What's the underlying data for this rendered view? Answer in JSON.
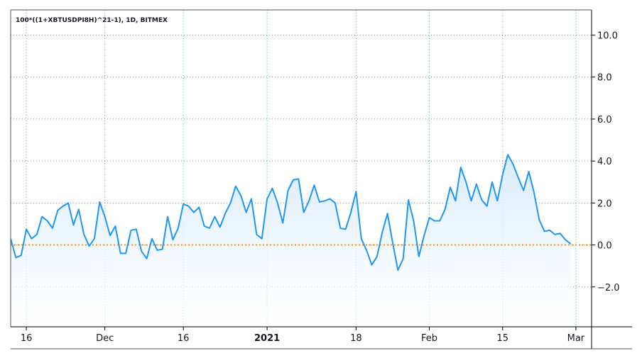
{
  "chart_data": {
    "type": "area",
    "title": "100*((1+XBTUSDPI8H)^21-1), 1D, BITMEX",
    "xlabel": "",
    "ylabel": "",
    "x_tick_labels": [
      {
        "date": "2020-11-16",
        "label": "16",
        "bold": false
      },
      {
        "date": "2020-12-01",
        "label": "Dec",
        "bold": false
      },
      {
        "date": "2020-12-16",
        "label": "16",
        "bold": false
      },
      {
        "date": "2021-01-01",
        "label": "2021",
        "bold": true
      },
      {
        "date": "2021-01-18",
        "label": "18",
        "bold": false
      },
      {
        "date": "2021-02-01",
        "label": "Feb",
        "bold": false
      },
      {
        "date": "2021-02-15",
        "label": "15",
        "bold": false
      },
      {
        "date": "2021-03-01",
        "label": "Mar",
        "bold": false
      }
    ],
    "y_ticks": [
      "10.0",
      "8.0",
      "6.0",
      "4.0",
      "2.0",
      "0.0",
      "−2.0"
    ],
    "ylim": [
      -3.9,
      11.2
    ],
    "xlim": [
      "2020-11-13",
      "2021-03-04"
    ],
    "grid": true,
    "reference_line": 0.0,
    "colors": {
      "line": "#2196f3",
      "area_top": "#d6eafb",
      "reference": "#ff9800",
      "grid": "#5e9e98",
      "axis": "#000000"
    },
    "series": [
      {
        "start_date": "2020-11-13",
        "values": [
          0.3,
          -0.6,
          -0.5,
          0.75,
          0.3,
          0.5,
          1.35,
          1.15,
          0.8,
          1.65,
          1.85,
          2.0,
          0.95,
          1.7,
          0.5,
          -0.05,
          0.3,
          2.05,
          1.35,
          0.45,
          0.9,
          -0.4,
          -0.4,
          0.7,
          0.75,
          -0.3,
          -0.65,
          0.3,
          -0.25,
          -0.2,
          1.35,
          0.25,
          0.8,
          1.95,
          1.85,
          1.55,
          1.8,
          0.9,
          0.8,
          1.35,
          0.85,
          1.5,
          2.0,
          2.8,
          2.35,
          1.55,
          2.2,
          0.5,
          0.3,
          2.2,
          2.7,
          2.0,
          1.05,
          2.6,
          3.1,
          3.15,
          1.55,
          2.1,
          2.85,
          2.05,
          2.1,
          2.2,
          2.0,
          0.8,
          0.75,
          1.55,
          2.55,
          0.3,
          -0.25,
          -0.95,
          -0.55,
          0.6,
          1.5,
          0.1,
          -1.2,
          -0.65,
          2.15,
          1.15,
          -0.55,
          0.45,
          1.3,
          1.15,
          1.15,
          1.7,
          2.75,
          2.1,
          3.7,
          3.0,
          2.1,
          2.9,
          2.15,
          1.85,
          3.0,
          2.1,
          3.35,
          4.3,
          3.85,
          3.2,
          2.6,
          3.5,
          2.5,
          1.2,
          0.65,
          0.7,
          0.5,
          0.55,
          0.25,
          0.05
        ]
      }
    ]
  }
}
